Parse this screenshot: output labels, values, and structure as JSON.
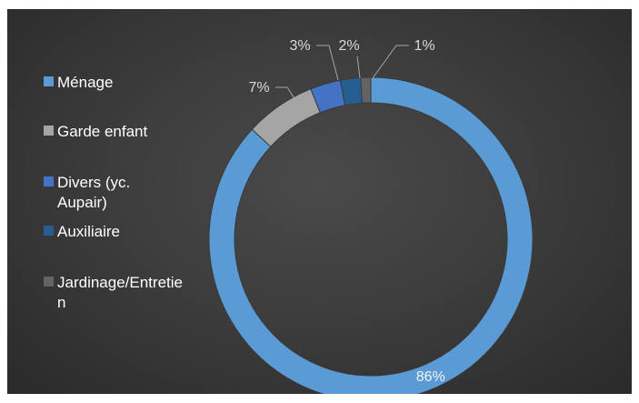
{
  "chart_data": {
    "type": "pie",
    "variant": "donut",
    "categories": [
      "Ménage",
      "Garde enfant",
      "Divers (yc. Aupair)",
      "Auxiliaire",
      "Jardinage/Entretien"
    ],
    "values": [
      86,
      7,
      3,
      2,
      1
    ],
    "value_labels": [
      "86%",
      "7%",
      "3%",
      "2%",
      "1%"
    ],
    "colors": [
      "#5b9bd5",
      "#a5a5a5",
      "#4472c4",
      "#255e91",
      "#636363"
    ],
    "legend_placement": "left",
    "title": ""
  },
  "legend": {
    "items": [
      {
        "label": "Ménage",
        "color": "#5b9bd5"
      },
      {
        "label": "Garde enfant",
        "color": "#a5a5a5"
      },
      {
        "label": "Divers (yc. Aupair)",
        "color": "#4472c4"
      },
      {
        "label": "Auxiliaire",
        "color": "#255e91"
      },
      {
        "label": "Jardinage/Entretien",
        "color": "#636363"
      }
    ]
  },
  "theme": {
    "background": "#3a3a3a"
  }
}
